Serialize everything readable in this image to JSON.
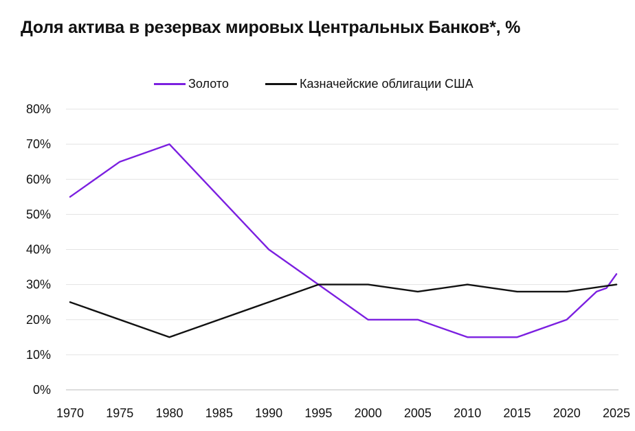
{
  "chart_data": {
    "type": "line",
    "title": "Доля актива в резервах мировых Центральных Банков*, %",
    "xlabel": "",
    "ylabel": "",
    "xlim": [
      1970,
      2025
    ],
    "ylim": [
      0,
      80
    ],
    "x_ticks": [
      "1970",
      "1975",
      "1980",
      "1985",
      "1990",
      "1995",
      "2000",
      "2005",
      "2010",
      "2015",
      "2020",
      "2025"
    ],
    "y_ticks": [
      "0%",
      "10%",
      "20%",
      "30%",
      "40%",
      "50%",
      "60%",
      "70%",
      "80%"
    ],
    "grid": "horizontal",
    "legend_position": "top-center",
    "series": [
      {
        "name": "Золото",
        "color": "#7B1FE0",
        "points": [
          [
            1970,
            55
          ],
          [
            1975,
            65
          ],
          [
            1979,
            69
          ],
          [
            1980,
            70
          ],
          [
            1990,
            40
          ],
          [
            1995,
            30
          ],
          [
            2000,
            20
          ],
          [
            2005,
            20
          ],
          [
            2010,
            15
          ],
          [
            2015,
            15
          ],
          [
            2020,
            20
          ],
          [
            2023,
            28
          ],
          [
            2024,
            29
          ],
          [
            2025,
            33
          ]
        ]
      },
      {
        "name": "Казначейские облигации США",
        "color": "#111111",
        "points": [
          [
            1970,
            25
          ],
          [
            1980,
            15
          ],
          [
            1990,
            25
          ],
          [
            1995,
            30
          ],
          [
            2000,
            30
          ],
          [
            2005,
            28
          ],
          [
            2010,
            30
          ],
          [
            2015,
            28
          ],
          [
            2020,
            28
          ],
          [
            2025,
            30
          ]
        ]
      }
    ]
  }
}
